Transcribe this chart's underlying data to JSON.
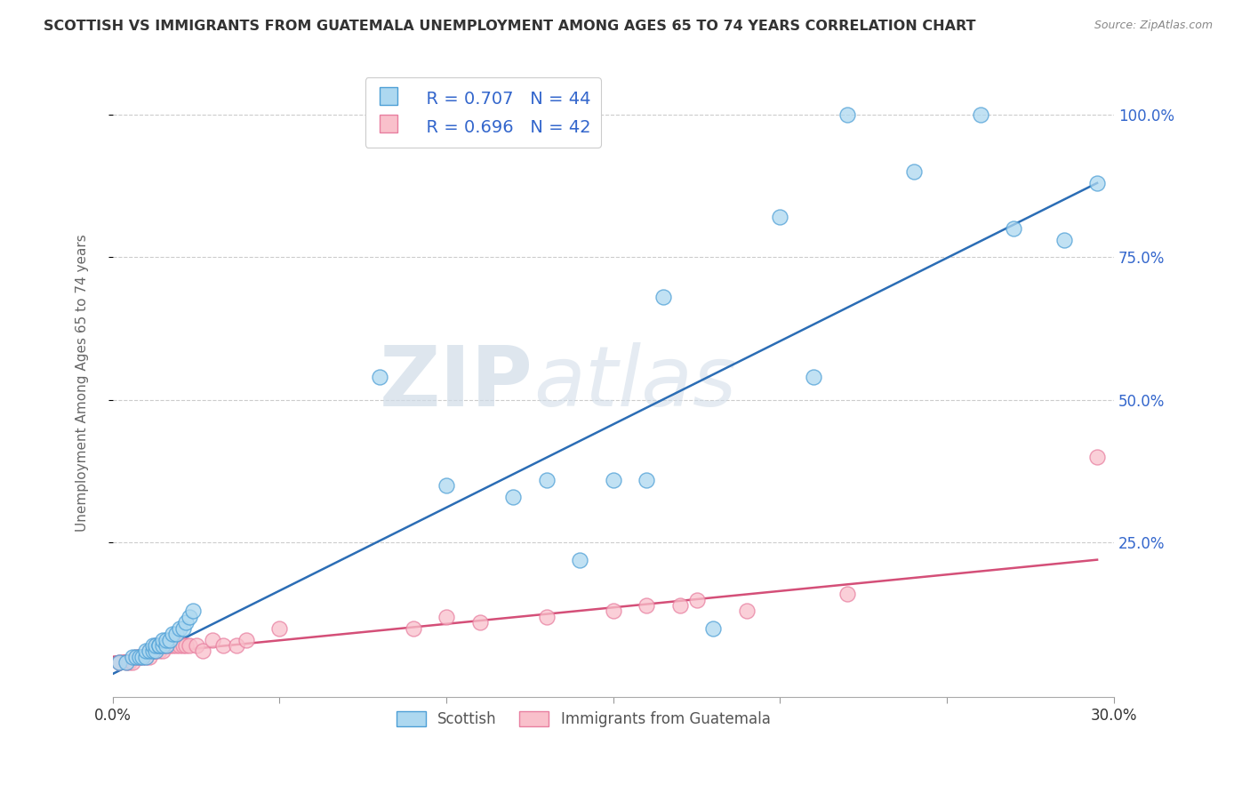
{
  "title": "SCOTTISH VS IMMIGRANTS FROM GUATEMALA UNEMPLOYMENT AMONG AGES 65 TO 74 YEARS CORRELATION CHART",
  "source": "Source: ZipAtlas.com",
  "ylabel": "Unemployment Among Ages 65 to 74 years",
  "xlim": [
    0.0,
    0.3
  ],
  "ylim": [
    -0.02,
    1.08
  ],
  "xticks": [
    0.0,
    0.05,
    0.1,
    0.15,
    0.2,
    0.25,
    0.3
  ],
  "ytick_labels": [
    "100.0%",
    "75.0%",
    "50.0%",
    "25.0%"
  ],
  "yticks": [
    1.0,
    0.75,
    0.5,
    0.25
  ],
  "blue_R": 0.707,
  "blue_N": 44,
  "pink_R": 0.696,
  "pink_N": 42,
  "blue_color": "#add8f0",
  "pink_color": "#f9c0cb",
  "blue_edge_color": "#4d9fd6",
  "pink_edge_color": "#e87fa0",
  "blue_line_color": "#2b6db5",
  "pink_line_color": "#d44f78",
  "legend_label_blue": "Scottish",
  "legend_label_pink": "Immigrants from Guatemala",
  "watermark_zip": "ZIP",
  "watermark_atlas": "atlas",
  "blue_x": [
    0.002,
    0.004,
    0.006,
    0.007,
    0.008,
    0.009,
    0.01,
    0.01,
    0.011,
    0.012,
    0.012,
    0.013,
    0.013,
    0.014,
    0.014,
    0.015,
    0.015,
    0.016,
    0.016,
    0.017,
    0.018,
    0.019,
    0.02,
    0.021,
    0.022,
    0.023,
    0.024,
    0.08,
    0.1,
    0.12,
    0.13,
    0.14,
    0.15,
    0.16,
    0.165,
    0.18,
    0.2,
    0.21,
    0.22,
    0.24,
    0.26,
    0.27,
    0.285,
    0.295
  ],
  "blue_y": [
    0.04,
    0.04,
    0.05,
    0.05,
    0.05,
    0.05,
    0.05,
    0.06,
    0.06,
    0.06,
    0.07,
    0.06,
    0.07,
    0.07,
    0.07,
    0.07,
    0.08,
    0.07,
    0.08,
    0.08,
    0.09,
    0.09,
    0.1,
    0.1,
    0.11,
    0.12,
    0.13,
    0.54,
    0.35,
    0.33,
    0.36,
    0.22,
    0.36,
    0.36,
    0.68,
    0.1,
    0.82,
    0.54,
    1.0,
    0.9,
    1.0,
    0.8,
    0.78,
    0.88
  ],
  "pink_x": [
    0.002,
    0.004,
    0.005,
    0.006,
    0.007,
    0.008,
    0.009,
    0.01,
    0.011,
    0.011,
    0.012,
    0.012,
    0.013,
    0.013,
    0.014,
    0.015,
    0.016,
    0.017,
    0.018,
    0.019,
    0.02,
    0.021,
    0.022,
    0.023,
    0.025,
    0.027,
    0.03,
    0.033,
    0.037,
    0.04,
    0.05,
    0.09,
    0.1,
    0.11,
    0.13,
    0.15,
    0.16,
    0.17,
    0.175,
    0.19,
    0.22,
    0.295
  ],
  "pink_y": [
    0.04,
    0.04,
    0.04,
    0.04,
    0.05,
    0.05,
    0.05,
    0.05,
    0.05,
    0.06,
    0.06,
    0.06,
    0.06,
    0.07,
    0.06,
    0.06,
    0.07,
    0.07,
    0.07,
    0.07,
    0.07,
    0.07,
    0.07,
    0.07,
    0.07,
    0.06,
    0.08,
    0.07,
    0.07,
    0.08,
    0.1,
    0.1,
    0.12,
    0.11,
    0.12,
    0.13,
    0.14,
    0.14,
    0.15,
    0.13,
    0.16,
    0.4
  ],
  "blue_trend_x": [
    0.0,
    0.295
  ],
  "blue_trend_y": [
    0.02,
    0.88
  ],
  "pink_trend_x": [
    0.0,
    0.295
  ],
  "pink_trend_y": [
    0.05,
    0.22
  ]
}
